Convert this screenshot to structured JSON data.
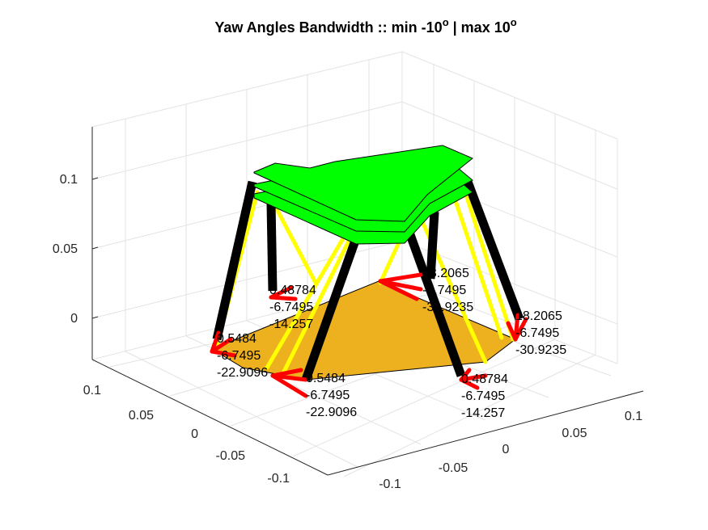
{
  "chart_data": {
    "type": "3d-surface",
    "title_text": "Yaw Angles Bandwidth :: min -10",
    "title_deg1": "o",
    "title_mid": " | max 10",
    "title_deg2": "o",
    "z_ticks": [
      "0.1",
      "0.05",
      "0"
    ],
    "y_ticks": [
      "0.1",
      "0.05",
      "0",
      "-0.05",
      "-0.1"
    ],
    "x_ticks": [
      "0.1",
      "0.05",
      "0",
      "-0.05",
      "-0.1"
    ],
    "grid": true,
    "colors": {
      "top_platform": "#00ff00",
      "base_platform": "#edb120",
      "strut": "#000000",
      "cable": "#ffff00",
      "joint": "#ff0000"
    },
    "annotations": [
      [
        "0.5484",
        "-6.7495",
        "-22.9096"
      ],
      [
        "0.5484",
        "-6.7495",
        "-22.9096"
      ],
      [
        "0.48784",
        "-6.7495",
        "-14.257"
      ],
      [
        "18.2065",
        "-6.7495",
        "-30.9235"
      ],
      [
        "18.2065",
        "-6.7495",
        "-30.9235"
      ],
      [
        "0.48784",
        "-6.7495",
        "-14.257"
      ]
    ]
  }
}
